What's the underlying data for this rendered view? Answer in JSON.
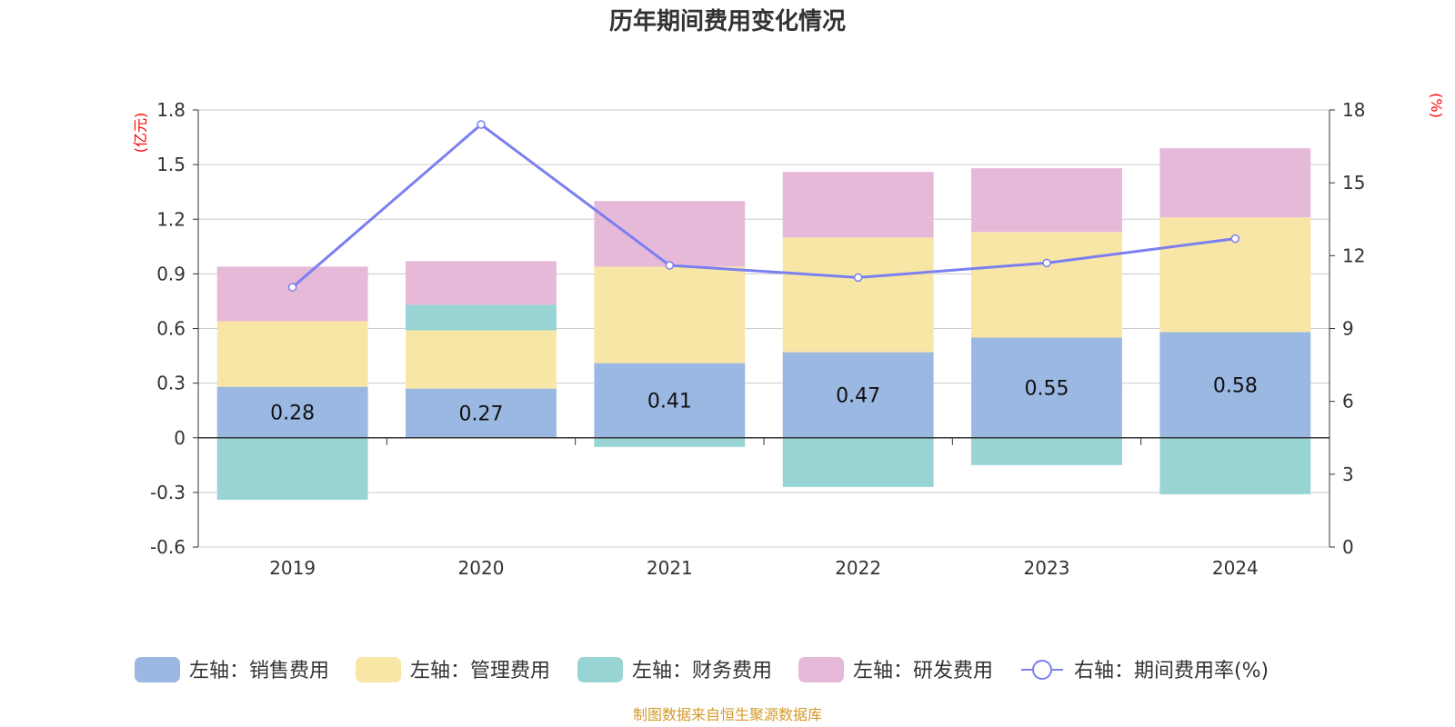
{
  "chart_data": {
    "type": "bar",
    "title": "历年期间费用变化情况",
    "categories": [
      "2019",
      "2020",
      "2021",
      "2022",
      "2023",
      "2024"
    ],
    "left_axis": {
      "unit": "(亿元)",
      "ylim": [
        -0.6,
        1.8
      ],
      "ticks": [
        "1.8",
        "1.5",
        "1.2",
        "0.9",
        "0.6",
        "0.3",
        "0",
        "-0.3",
        "-0.6"
      ],
      "tick_values": [
        1.8,
        1.5,
        1.2,
        0.9,
        0.6,
        0.3,
        0,
        -0.3,
        -0.6
      ]
    },
    "right_axis": {
      "unit": "(%)",
      "ylim": [
        0,
        18
      ],
      "ticks": [
        "18",
        "15",
        "12",
        "9",
        "6",
        "3",
        "0"
      ],
      "tick_values": [
        18,
        15,
        12,
        9,
        6,
        3,
        0
      ]
    },
    "series": [
      {
        "name": "左轴：销售费用",
        "type": "bar",
        "axis": "left",
        "color": "#9bb8e2",
        "values": [
          0.28,
          0.27,
          0.41,
          0.47,
          0.55,
          0.58
        ],
        "labels": [
          "0.28",
          "0.27",
          "0.41",
          "0.47",
          "0.55",
          "0.58"
        ]
      },
      {
        "name": "左轴：管理费用",
        "type": "bar",
        "axis": "left",
        "color": "#f8e6a6",
        "values": [
          0.36,
          0.32,
          0.53,
          0.63,
          0.58,
          0.63
        ]
      },
      {
        "name": "左轴：财务费用",
        "type": "bar",
        "axis": "left",
        "color": "#98d4d4",
        "values": [
          -0.34,
          0.14,
          -0.05,
          -0.27,
          -0.15,
          -0.31
        ]
      },
      {
        "name": "左轴：研发费用",
        "type": "bar",
        "axis": "left",
        "color": "#e7b9d9",
        "values": [
          0.3,
          0.24,
          0.36,
          0.36,
          0.35,
          0.38
        ]
      },
      {
        "name": "右轴：期间费用率(%)",
        "type": "line",
        "axis": "right",
        "color": "#7b7ff0",
        "values": [
          10.7,
          17.4,
          11.6,
          11.1,
          11.7,
          12.7
        ]
      }
    ],
    "stack_order": [
      0,
      1,
      2,
      3
    ],
    "grid": true,
    "legend_position": "bottom"
  },
  "source": "制图数据来自恒生聚源数据库"
}
